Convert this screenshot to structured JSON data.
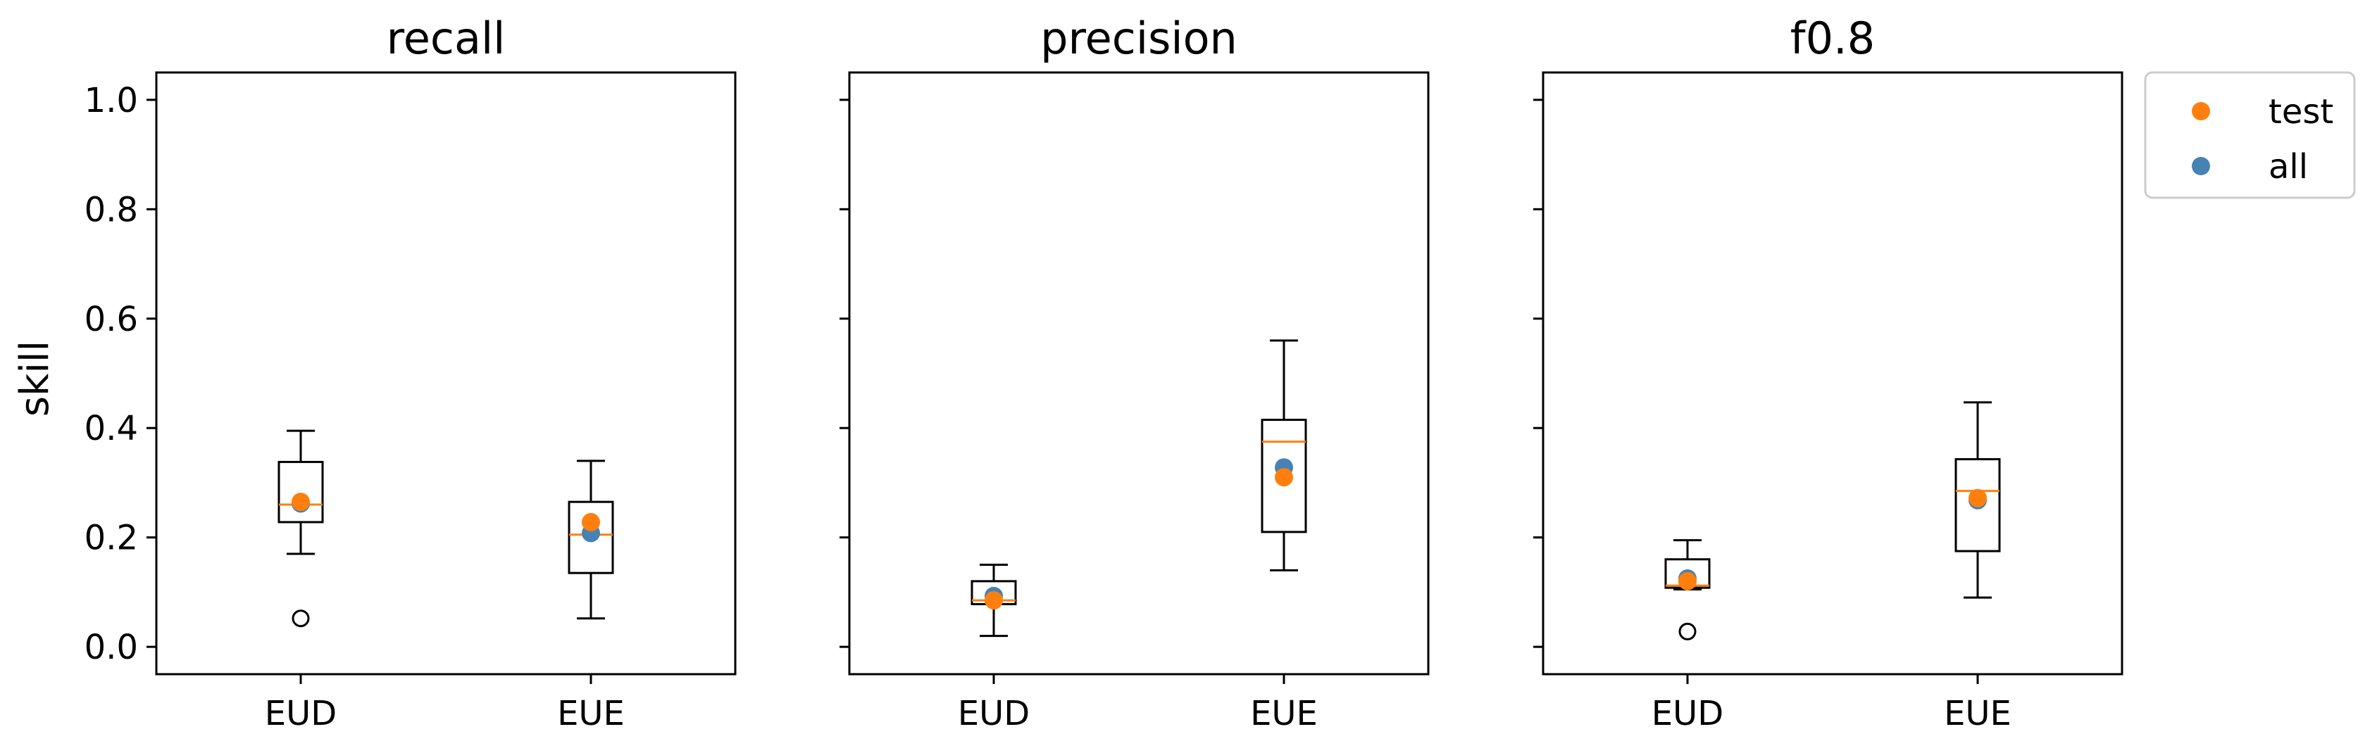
{
  "chart_data": {
    "type": "box",
    "ylabel": "skill",
    "ylim": [
      -0.05,
      1.05
    ],
    "yticks": [
      "0.0",
      "0.2",
      "0.4",
      "0.6",
      "0.8",
      "1.0"
    ],
    "ytick_values": [
      0,
      0.2,
      0.4,
      0.6,
      0.8,
      1.0
    ],
    "grid": false,
    "legend_position": "outside-top-right",
    "series_styles": [
      {
        "name": "test",
        "color": "#ff7f0e"
      },
      {
        "name": "all",
        "color": "#4682b4"
      }
    ],
    "box_median_color": "#ff7f0e",
    "panels": [
      {
        "title": "recall",
        "categories": [
          "EUD",
          "EUE"
        ],
        "boxes": [
          {
            "whisker_low": 0.17,
            "q1": 0.228,
            "median": 0.26,
            "q3": 0.338,
            "whisker_high": 0.395,
            "outliers": [
              0.052
            ],
            "test": 0.265,
            "all": 0.262
          },
          {
            "whisker_low": 0.052,
            "q1": 0.135,
            "median": 0.205,
            "q3": 0.265,
            "whisker_high": 0.34,
            "outliers": [],
            "test": 0.228,
            "all": 0.208
          }
        ]
      },
      {
        "title": "precision",
        "categories": [
          "EUD",
          "EUE"
        ],
        "boxes": [
          {
            "whisker_low": 0.02,
            "q1": 0.078,
            "median": 0.085,
            "q3": 0.12,
            "whisker_high": 0.15,
            "outliers": [],
            "test": 0.085,
            "all": 0.093
          },
          {
            "whisker_low": 0.14,
            "q1": 0.21,
            "median": 0.375,
            "q3": 0.415,
            "whisker_high": 0.56,
            "outliers": [],
            "test": 0.31,
            "all": 0.328
          }
        ]
      },
      {
        "title": "f0.8",
        "categories": [
          "EUD",
          "EUE"
        ],
        "boxes": [
          {
            "whisker_low": 0.105,
            "q1": 0.108,
            "median": 0.112,
            "q3": 0.16,
            "whisker_high": 0.195,
            "outliers": [
              0.028
            ],
            "test": 0.12,
            "all": 0.125
          },
          {
            "whisker_low": 0.09,
            "q1": 0.175,
            "median": 0.285,
            "q3": 0.343,
            "whisker_high": 0.447,
            "outliers": [],
            "test": 0.272,
            "all": 0.268
          }
        ]
      }
    ]
  }
}
